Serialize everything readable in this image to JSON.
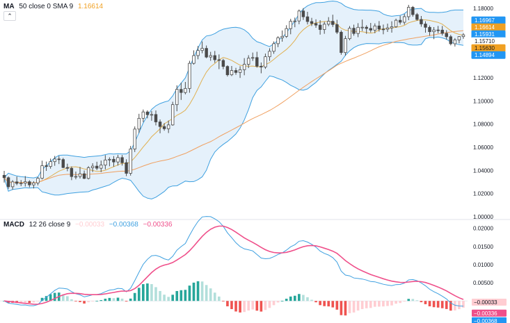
{
  "main_legend": {
    "name": "MA",
    "params": "50 close 0 SMA 9",
    "value": "1.16614",
    "value_color": "#f0a022"
  },
  "collapse_icon": "chevron-up-icon",
  "collapse_glyph": "⌃",
  "macd_legend": {
    "name": "MACD",
    "params": "12 26 close 9",
    "hist_value": "−0.00033",
    "macd_value": "−0.00368",
    "signal_value": "−0.00336"
  },
  "colors": {
    "up": "#26a69a",
    "down": "#ef5350",
    "up_light": "#b2dfdb",
    "down_light": "#ffcdd2",
    "candle": "#4a4a4a",
    "bb_band": "#3ea0e0",
    "bb_fill": "#dcecfa",
    "ma_short": "#e0b050",
    "ma_long": "#f0a060",
    "macd_line": "#3ea0e0",
    "signal_line": "#ef4f8a",
    "axis_text": "#131722",
    "separator": "#e0e3eb"
  },
  "chart_data": [
    {
      "type": "candlestick",
      "title": "",
      "y_ticks": [
        "1.18000",
        "1.16000",
        "1.14000",
        "1.12000",
        "1.10000",
        "1.08000",
        "1.06000",
        "1.04000",
        "1.02000",
        "1.00000"
      ],
      "ylim": [
        1.0,
        1.18
      ],
      "candles": [
        [
          1.0358,
          1.0396,
          1.0295,
          1.0337
        ],
        [
          1.0337,
          1.0348,
          1.0241,
          1.0259
        ],
        [
          1.0259,
          1.0316,
          1.0233,
          1.0301
        ],
        [
          1.0301,
          1.0347,
          1.0272,
          1.0288
        ],
        [
          1.0288,
          1.0317,
          1.0264,
          1.029
        ],
        [
          1.029,
          1.0351,
          1.0261,
          1.0302
        ],
        [
          1.0302,
          1.0315,
          1.0254,
          1.0275
        ],
        [
          1.0275,
          1.0307,
          1.0244,
          1.0292
        ],
        [
          1.0292,
          1.0343,
          1.0271,
          1.0332
        ],
        [
          1.0332,
          1.0484,
          1.0322,
          1.0441
        ],
        [
          1.0441,
          1.0476,
          1.0396,
          1.0434
        ],
        [
          1.0434,
          1.0502,
          1.0415,
          1.0476
        ],
        [
          1.0476,
          1.0525,
          1.044,
          1.0499
        ],
        [
          1.0499,
          1.0525,
          1.0455,
          1.0494
        ],
        [
          1.0494,
          1.0508,
          1.0419,
          1.0425
        ],
        [
          1.0425,
          1.0458,
          1.0393,
          1.0418
        ],
        [
          1.0418,
          1.0434,
          1.0316,
          1.0347
        ],
        [
          1.0347,
          1.039,
          1.0323,
          1.0348
        ],
        [
          1.0348,
          1.043,
          1.033,
          1.0371
        ],
        [
          1.0371,
          1.0399,
          1.0325,
          1.0331
        ],
        [
          1.0331,
          1.0437,
          1.0322,
          1.0423
        ],
        [
          1.0423,
          1.0462,
          1.0386,
          1.0437
        ],
        [
          1.0437,
          1.0475,
          1.0402,
          1.0419
        ],
        [
          1.0419,
          1.0485,
          1.0385,
          1.0446
        ],
        [
          1.0446,
          1.0532,
          1.0409,
          1.049
        ],
        [
          1.049,
          1.0513,
          1.0436,
          1.0496
        ],
        [
          1.0496,
          1.0524,
          1.0432,
          1.0473
        ],
        [
          1.0473,
          1.0535,
          1.0442,
          1.0511
        ],
        [
          1.0511,
          1.0533,
          1.0442,
          1.0467
        ],
        [
          1.0467,
          1.0496,
          1.0351,
          1.0375
        ],
        [
          1.0375,
          1.0611,
          1.0355,
          1.0585
        ],
        [
          1.0585,
          1.078,
          1.0559,
          1.0757
        ],
        [
          1.0757,
          1.0889,
          1.0723,
          1.085
        ],
        [
          1.085,
          1.0926,
          1.0817,
          1.0905
        ],
        [
          1.0905,
          1.0919,
          1.085,
          1.0881
        ],
        [
          1.0881,
          1.0913,
          1.0829,
          1.0883
        ],
        [
          1.0883,
          1.0918,
          1.0789,
          1.0819
        ],
        [
          1.0819,
          1.084,
          1.0721,
          1.0779
        ],
        [
          1.0779,
          1.0808,
          1.0743,
          1.076
        ],
        [
          1.076,
          1.0831,
          1.0723,
          1.0793
        ],
        [
          1.0793,
          1.0993,
          1.0786,
          1.0968
        ],
        [
          1.0968,
          1.1135,
          1.0911,
          1.11
        ],
        [
          1.11,
          1.1158,
          1.1009,
          1.1073
        ],
        [
          1.1073,
          1.1164,
          1.1057,
          1.1108
        ],
        [
          1.1108,
          1.1347,
          1.1071,
          1.1325
        ],
        [
          1.1325,
          1.1437,
          1.1314,
          1.1392
        ],
        [
          1.1392,
          1.1474,
          1.136,
          1.1436
        ],
        [
          1.1436,
          1.1514,
          1.1412,
          1.1454
        ],
        [
          1.1454,
          1.1479,
          1.1369,
          1.1379
        ],
        [
          1.1379,
          1.1424,
          1.1347,
          1.1392
        ],
        [
          1.1392,
          1.1432,
          1.1329,
          1.1356
        ],
        [
          1.1356,
          1.1402,
          1.1275,
          1.135
        ],
        [
          1.135,
          1.1364,
          1.1274,
          1.1298
        ],
        [
          1.1298,
          1.1308,
          1.1211,
          1.1226
        ],
        [
          1.1226,
          1.1302,
          1.1215,
          1.1263
        ],
        [
          1.1263,
          1.1286,
          1.1226,
          1.1246
        ],
        [
          1.1246,
          1.13,
          1.1199,
          1.127
        ],
        [
          1.127,
          1.137,
          1.1222,
          1.1317
        ],
        [
          1.1317,
          1.1395,
          1.1284,
          1.1369
        ],
        [
          1.1369,
          1.1418,
          1.1346,
          1.1375
        ],
        [
          1.1375,
          1.1425,
          1.1288,
          1.13
        ],
        [
          1.13,
          1.1332,
          1.1239,
          1.1293
        ],
        [
          1.1293,
          1.1409,
          1.1277,
          1.1382
        ],
        [
          1.1382,
          1.1455,
          1.1346,
          1.1429
        ],
        [
          1.1429,
          1.1514,
          1.1407,
          1.1495
        ],
        [
          1.1495,
          1.1559,
          1.1465,
          1.1546
        ],
        [
          1.1546,
          1.1609,
          1.1512,
          1.1558
        ],
        [
          1.1558,
          1.1654,
          1.1545,
          1.1625
        ],
        [
          1.1625,
          1.1709,
          1.1576,
          1.1688
        ],
        [
          1.1688,
          1.172,
          1.1637,
          1.1691
        ],
        [
          1.1691,
          1.179,
          1.1663,
          1.1777
        ],
        [
          1.1777,
          1.1802,
          1.17,
          1.1727
        ],
        [
          1.1727,
          1.177,
          1.1661,
          1.1686
        ],
        [
          1.1686,
          1.1718,
          1.1647,
          1.1669
        ],
        [
          1.1669,
          1.1705,
          1.1632,
          1.1655
        ],
        [
          1.1655,
          1.1698,
          1.1573,
          1.1617
        ],
        [
          1.1617,
          1.1684,
          1.158,
          1.1663
        ],
        [
          1.1663,
          1.1724,
          1.1646,
          1.1688
        ],
        [
          1.1688,
          1.1745,
          1.1639,
          1.166
        ],
        [
          1.166,
          1.1701,
          1.1578,
          1.1594
        ],
        [
          1.1594,
          1.161,
          1.1399,
          1.1418
        ],
        [
          1.1418,
          1.1562,
          1.1391,
          1.1538
        ],
        [
          1.1538,
          1.1647,
          1.1524,
          1.1628
        ],
        [
          1.1628,
          1.1659,
          1.1564,
          1.1583
        ],
        [
          1.1583,
          1.1672,
          1.1551,
          1.1636
        ],
        [
          1.1636,
          1.1703,
          1.1604,
          1.1637
        ],
        [
          1.1637,
          1.1654,
          1.158,
          1.1626
        ],
        [
          1.1626,
          1.1674,
          1.1591,
          1.1612
        ],
        [
          1.1612,
          1.167,
          1.1585,
          1.1648
        ],
        [
          1.1648,
          1.169,
          1.1599,
          1.1621
        ],
        [
          1.1621,
          1.166,
          1.1576,
          1.162
        ],
        [
          1.162,
          1.1668,
          1.1596,
          1.1631
        ],
        [
          1.1631,
          1.1688,
          1.159,
          1.1641
        ],
        [
          1.1641,
          1.1711,
          1.1632,
          1.1697
        ],
        [
          1.1697,
          1.1736,
          1.166,
          1.168
        ],
        [
          1.168,
          1.1752,
          1.1659,
          1.1728
        ],
        [
          1.1728,
          1.183,
          1.1698,
          1.1809
        ],
        [
          1.1809,
          1.182,
          1.1728,
          1.1746
        ],
        [
          1.1746,
          1.176,
          1.1693,
          1.1704
        ],
        [
          1.1704,
          1.1734,
          1.1641,
          1.1665
        ],
        [
          1.1665,
          1.1688,
          1.159,
          1.1636
        ],
        [
          1.1636,
          1.1652,
          1.1564,
          1.1598
        ],
        [
          1.1598,
          1.1638,
          1.1534,
          1.1613
        ],
        [
          1.1613,
          1.1648,
          1.1584,
          1.1612
        ],
        [
          1.1612,
          1.1648,
          1.1565,
          1.1584
        ],
        [
          1.1584,
          1.1611,
          1.1529,
          1.1555
        ],
        [
          1.1555,
          1.1571,
          1.148,
          1.1494
        ],
        [
          1.1494,
          1.1543,
          1.147,
          1.1527
        ],
        [
          1.1527,
          1.156,
          1.1498,
          1.1556
        ],
        [
          1.1556,
          1.1586,
          1.1537,
          1.1571
        ]
      ],
      "overlays": [
        {
          "kind": "bollinger_bands",
          "period": 20,
          "stddev": 2,
          "color": "#3ea0e0"
        },
        {
          "kind": "sma",
          "period": 9,
          "color": "#e0b050"
        },
        {
          "kind": "sma",
          "period": 50,
          "color": "#f0a060"
        }
      ],
      "price_labels": [
        {
          "text": "1.16967",
          "value": 1.16967,
          "bg": "#2196f3",
          "fg": "#ffffff"
        },
        {
          "text": "1.16614",
          "value": 1.16614,
          "bg": "#f0a022",
          "fg": "#ffffff"
        },
        {
          "text": "1.15931",
          "value": 1.15931,
          "bg": "#2196f3",
          "fg": "#ffffff"
        },
        {
          "text": "1.15710",
          "value": 1.1571,
          "bg": "#ffffff",
          "fg": "#131722"
        },
        {
          "text": "1.15630",
          "value": 1.1563,
          "bg": "#f0a022",
          "fg": "#131722"
        },
        {
          "text": "1.14894",
          "value": 1.14894,
          "bg": "#2196f3",
          "fg": "#ffffff"
        }
      ]
    },
    {
      "type": "macd",
      "title": "",
      "y_ticks": [
        "0.02000",
        "0.01500",
        "0.01000",
        "0.00500"
      ],
      "ylim": [
        -0.0055,
        0.0205
      ],
      "fast": 12,
      "slow": 26,
      "signal": 9,
      "value_labels": [
        {
          "text": "−0.00033",
          "value": -0.00033,
          "bg": "#ffcdd2",
          "fg": "#131722"
        },
        {
          "text": "−0.00336",
          "value": -0.00336,
          "bg": "#ef4f8a",
          "fg": "#ffffff"
        },
        {
          "text": "−0.00368",
          "value": -0.00368,
          "bg": "#2196f3",
          "fg": "#ffffff"
        }
      ]
    }
  ]
}
